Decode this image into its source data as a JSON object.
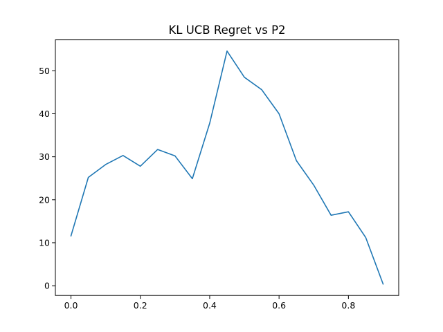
{
  "chart_data": {
    "type": "line",
    "title": "KL UCB Regret vs P2",
    "xlabel": "",
    "ylabel": "",
    "xlim": [
      -0.045,
      0.945
    ],
    "ylim": [
      -2.27,
      57.2
    ],
    "xticks": [
      0.0,
      0.2,
      0.4,
      0.6,
      0.8
    ],
    "xtick_labels": [
      "0.0",
      "0.2",
      "0.4",
      "0.6",
      "0.8"
    ],
    "yticks": [
      0,
      10,
      20,
      30,
      40,
      50
    ],
    "ytick_labels": [
      "0",
      "10",
      "20",
      "30",
      "40",
      "50"
    ],
    "grid": false,
    "series": [
      {
        "color": "#1f77b4",
        "x": [
          0.0,
          0.05,
          0.1,
          0.15,
          0.2,
          0.25,
          0.3,
          0.35,
          0.4,
          0.45,
          0.5,
          0.55,
          0.6,
          0.65,
          0.7,
          0.75,
          0.8,
          0.85,
          0.9
        ],
        "y": [
          11.6,
          25.2,
          28.2,
          30.3,
          27.8,
          31.7,
          30.2,
          24.9,
          37.8,
          54.6,
          48.5,
          45.6,
          40.0,
          29.1,
          23.4,
          16.4,
          17.2,
          11.2,
          0.4
        ]
      }
    ]
  }
}
